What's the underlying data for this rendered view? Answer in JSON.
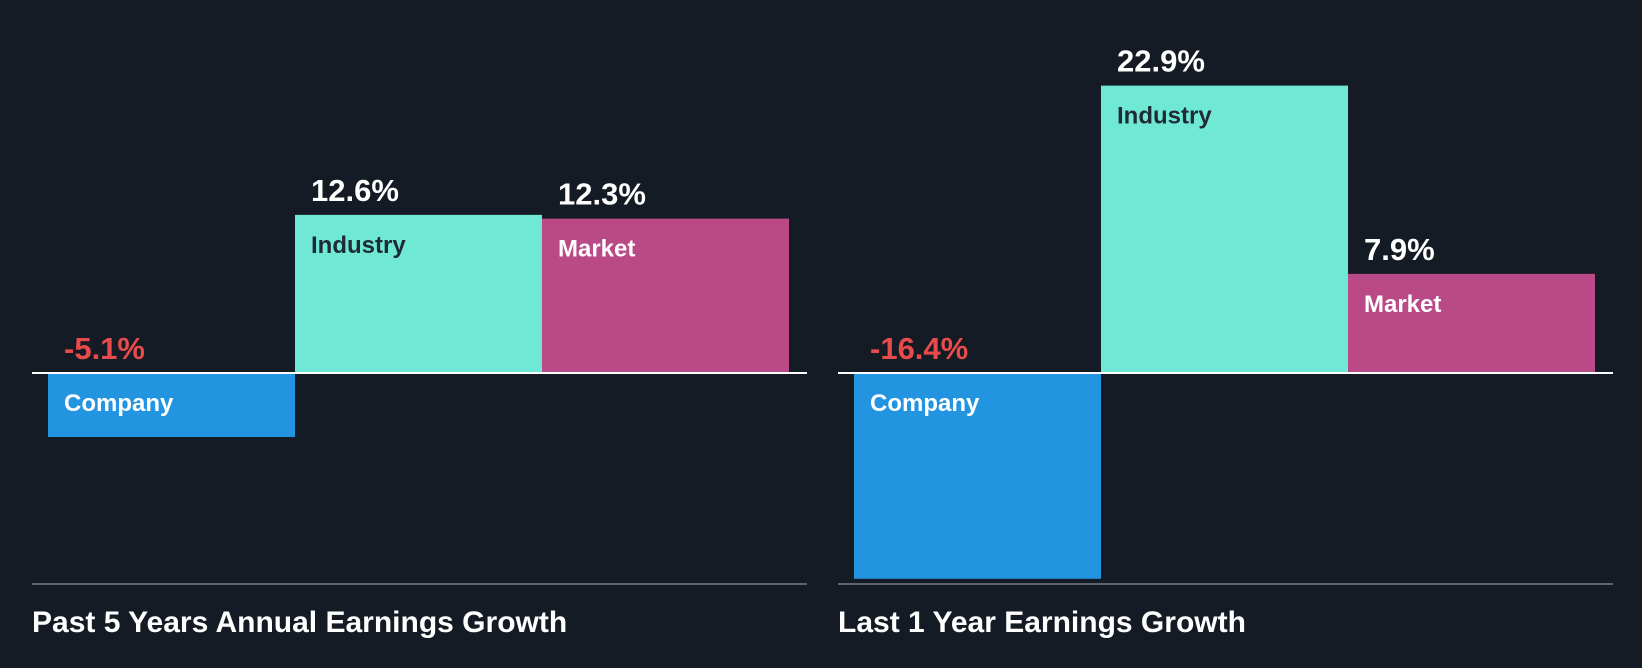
{
  "colors": {
    "background": "#151b24",
    "company": "#2394e0",
    "industry": "#6fe8d6",
    "market": "#b94a87",
    "negative_value": "#e84b4b",
    "positive_value": "#ffffff",
    "axis": "#ffffff",
    "baseline": "#5f646c",
    "title": "#ffffff",
    "dark_label": "#1f2a35",
    "light_label": "#ffffff"
  },
  "chart_data": [
    {
      "type": "bar",
      "title": "Past 5 Years Annual Earnings Growth",
      "categories": [
        "Company",
        "Industry",
        "Market"
      ],
      "values": [
        -5.1,
        12.6,
        12.3
      ],
      "value_labels": [
        "-5.1%",
        "12.6%",
        "12.3%"
      ],
      "unit": "%",
      "grid": false,
      "legend": "none"
    },
    {
      "type": "bar",
      "title": "Last 1 Year Earnings Growth",
      "categories": [
        "Company",
        "Industry",
        "Market"
      ],
      "values": [
        -16.4,
        22.9,
        7.9
      ],
      "value_labels": [
        "-16.4%",
        "22.9%",
        "7.9%"
      ],
      "unit": "%",
      "grid": false,
      "legend": "none"
    }
  ]
}
